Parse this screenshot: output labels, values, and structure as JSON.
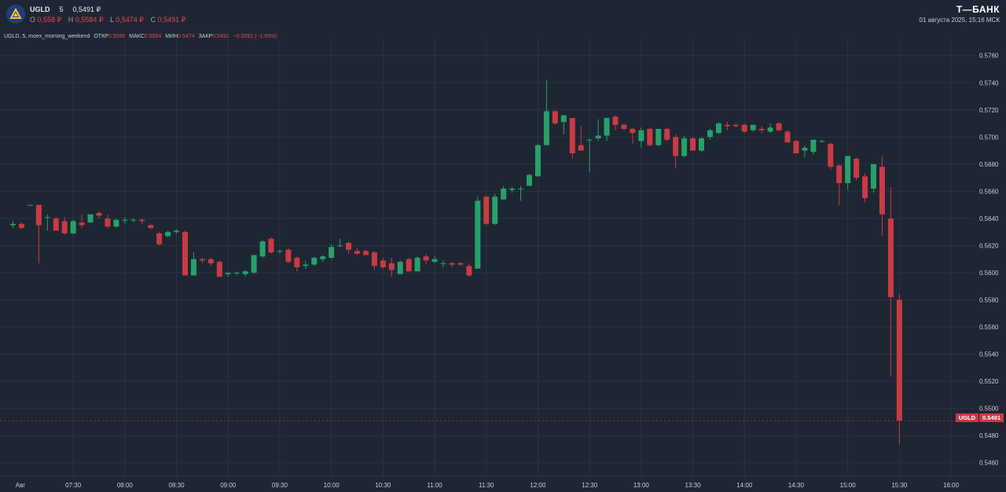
{
  "header": {
    "ticker": "UGLD",
    "interval": "5",
    "price": "0,5491 ₽",
    "ohlc": [
      {
        "k": "O",
        "v": "0,558 ₽"
      },
      {
        "k": "H",
        "v": "0,5584 ₽"
      },
      {
        "k": "L",
        "v": "0,5474 ₽"
      },
      {
        "k": "C",
        "v": "0,5491 ₽"
      }
    ],
    "brand": "Т—БАНК",
    "datetime": "01 августа 2025, 15:16 МСК"
  },
  "info": {
    "title": "UGLD, 5, moex_morning_weekend",
    "open_label": "ОТКР",
    "open": "0.5580",
    "high_label": "МАКС",
    "high": "0.5584",
    "low_label": "МИН",
    "low": "0.5474",
    "close_label": "ЗАКР",
    "close": "0.5491",
    "change": "−0.0092 (−1.65%)"
  },
  "current_price": {
    "name": "UGLD",
    "value": "0.5491"
  },
  "colors": {
    "up": "#26a16a",
    "down": "#c93a44",
    "background": "#1f2633",
    "grid": "#2a3240",
    "axis_text": "#c5ccd6"
  },
  "chart_data": {
    "type": "candlestick",
    "interval_minutes": 5,
    "x_tick_labels": [
      "Авг",
      "07:30",
      "08:00",
      "08:30",
      "09:00",
      "09:30",
      "10:00",
      "10:30",
      "11:00",
      "11:30",
      "12:00",
      "12:30",
      "13:00",
      "13:30",
      "14:00",
      "14:30",
      "15:00",
      "15:30",
      "16:00"
    ],
    "y_ticks": [
      "0.5460",
      "0.5480",
      "0.5500",
      "0.5520",
      "0.5540",
      "0.5560",
      "0.5580",
      "0.5600",
      "0.5620",
      "0.5640",
      "0.5660",
      "0.5680",
      "0.5700",
      "0.5720",
      "0.5740",
      "0.5760"
    ],
    "ylim": [
      0.545,
      0.5772
    ],
    "grid": true,
    "first_candle_time": "06:55",
    "candles": [
      {
        "o": 0.5635,
        "h": 0.5638,
        "l": 0.5633,
        "c": 0.5636
      },
      {
        "o": 0.5636,
        "h": 0.5637,
        "l": 0.5632,
        "c": 0.5633
      },
      {
        "o": 0.565,
        "h": 0.565,
        "l": 0.565,
        "c": 0.565
      },
      {
        "o": 0.565,
        "h": 0.565,
        "l": 0.5607,
        "c": 0.5635
      },
      {
        "o": 0.5641,
        "h": 0.5643,
        "l": 0.5631,
        "c": 0.5641
      },
      {
        "o": 0.564,
        "h": 0.5641,
        "l": 0.5632,
        "c": 0.5631
      },
      {
        "o": 0.5638,
        "h": 0.5641,
        "l": 0.5628,
        "c": 0.5629
      },
      {
        "o": 0.5629,
        "h": 0.5639,
        "l": 0.5628,
        "c": 0.5638
      },
      {
        "o": 0.5637,
        "h": 0.5643,
        "l": 0.5633,
        "c": 0.5635
      },
      {
        "o": 0.5637,
        "h": 0.5642,
        "l": 0.5637,
        "c": 0.5643
      },
      {
        "o": 0.5644,
        "h": 0.5645,
        "l": 0.564,
        "c": 0.5642
      },
      {
        "o": 0.564,
        "h": 0.5643,
        "l": 0.5633,
        "c": 0.5634
      },
      {
        "o": 0.5634,
        "h": 0.564,
        "l": 0.5633,
        "c": 0.5639
      },
      {
        "o": 0.5639,
        "h": 0.5641,
        "l": 0.5636,
        "c": 0.5639
      },
      {
        "o": 0.5639,
        "h": 0.564,
        "l": 0.5637,
        "c": 0.5639
      },
      {
        "o": 0.5639,
        "h": 0.564,
        "l": 0.5636,
        "c": 0.5638
      },
      {
        "o": 0.5635,
        "h": 0.5636,
        "l": 0.5632,
        "c": 0.5633
      },
      {
        "o": 0.5629,
        "h": 0.563,
        "l": 0.562,
        "c": 0.5621
      },
      {
        "o": 0.5627,
        "h": 0.5631,
        "l": 0.5626,
        "c": 0.563
      },
      {
        "o": 0.563,
        "h": 0.5632,
        "l": 0.5629,
        "c": 0.5631
      },
      {
        "o": 0.563,
        "h": 0.5631,
        "l": 0.5598,
        "c": 0.5598
      },
      {
        "o": 0.5598,
        "h": 0.5615,
        "l": 0.5598,
        "c": 0.561
      },
      {
        "o": 0.561,
        "h": 0.5611,
        "l": 0.5607,
        "c": 0.5609
      },
      {
        "o": 0.561,
        "h": 0.5611,
        "l": 0.5605,
        "c": 0.5607
      },
      {
        "o": 0.5608,
        "h": 0.5609,
        "l": 0.5597,
        "c": 0.5597
      },
      {
        "o": 0.5599,
        "h": 0.56,
        "l": 0.5597,
        "c": 0.56
      },
      {
        "o": 0.56,
        "h": 0.5601,
        "l": 0.5598,
        "c": 0.56
      },
      {
        "o": 0.5599,
        "h": 0.5602,
        "l": 0.5597,
        "c": 0.5601
      },
      {
        "o": 0.56,
        "h": 0.5613,
        "l": 0.5599,
        "c": 0.5613
      },
      {
        "o": 0.5612,
        "h": 0.5624,
        "l": 0.5611,
        "c": 0.5623
      },
      {
        "o": 0.5625,
        "h": 0.5626,
        "l": 0.5614,
        "c": 0.5615
      },
      {
        "o": 0.5616,
        "h": 0.5617,
        "l": 0.5614,
        "c": 0.5616
      },
      {
        "o": 0.5617,
        "h": 0.5618,
        "l": 0.5607,
        "c": 0.5608
      },
      {
        "o": 0.5611,
        "h": 0.5612,
        "l": 0.5601,
        "c": 0.5604
      },
      {
        "o": 0.5605,
        "h": 0.5609,
        "l": 0.5603,
        "c": 0.5606
      },
      {
        "o": 0.5606,
        "h": 0.5612,
        "l": 0.5605,
        "c": 0.5611
      },
      {
        "o": 0.561,
        "h": 0.5613,
        "l": 0.5608,
        "c": 0.5612
      },
      {
        "o": 0.5611,
        "h": 0.5621,
        "l": 0.561,
        "c": 0.5619
      },
      {
        "o": 0.562,
        "h": 0.5625,
        "l": 0.5619,
        "c": 0.562
      },
      {
        "o": 0.5622,
        "h": 0.5623,
        "l": 0.5614,
        "c": 0.5617
      },
      {
        "o": 0.5616,
        "h": 0.5618,
        "l": 0.5613,
        "c": 0.5614
      },
      {
        "o": 0.5616,
        "h": 0.5617,
        "l": 0.5613,
        "c": 0.5613
      },
      {
        "o": 0.5615,
        "h": 0.5616,
        "l": 0.5602,
        "c": 0.5605
      },
      {
        "o": 0.5609,
        "h": 0.5611,
        "l": 0.5603,
        "c": 0.5604
      },
      {
        "o": 0.5607,
        "h": 0.5611,
        "l": 0.5597,
        "c": 0.5602
      },
      {
        "o": 0.5599,
        "h": 0.5609,
        "l": 0.5599,
        "c": 0.5608
      },
      {
        "o": 0.561,
        "h": 0.5611,
        "l": 0.5601,
        "c": 0.5601
      },
      {
        "o": 0.5601,
        "h": 0.5612,
        "l": 0.5601,
        "c": 0.5611
      },
      {
        "o": 0.5612,
        "h": 0.5614,
        "l": 0.5606,
        "c": 0.5609
      },
      {
        "o": 0.5608,
        "h": 0.5612,
        "l": 0.5607,
        "c": 0.561
      },
      {
        "o": 0.5607,
        "h": 0.5609,
        "l": 0.5604,
        "c": 0.5607
      },
      {
        "o": 0.5607,
        "h": 0.5608,
        "l": 0.5604,
        "c": 0.5606
      },
      {
        "o": 0.5607,
        "h": 0.5608,
        "l": 0.5605,
        "c": 0.5606
      },
      {
        "o": 0.5605,
        "h": 0.5607,
        "l": 0.5597,
        "c": 0.5598
      },
      {
        "o": 0.5603,
        "h": 0.5656,
        "l": 0.5603,
        "c": 0.5653
      },
      {
        "o": 0.5656,
        "h": 0.5657,
        "l": 0.5635,
        "c": 0.5636
      },
      {
        "o": 0.5636,
        "h": 0.5658,
        "l": 0.5635,
        "c": 0.5656
      },
      {
        "o": 0.5654,
        "h": 0.5664,
        "l": 0.5654,
        "c": 0.5662
      },
      {
        "o": 0.5661,
        "h": 0.5663,
        "l": 0.5659,
        "c": 0.5662
      },
      {
        "o": 0.5662,
        "h": 0.5664,
        "l": 0.5653,
        "c": 0.5662
      },
      {
        "o": 0.5664,
        "h": 0.5673,
        "l": 0.5664,
        "c": 0.5672
      },
      {
        "o": 0.5671,
        "h": 0.5695,
        "l": 0.5671,
        "c": 0.5694
      },
      {
        "o": 0.5694,
        "h": 0.5742,
        "l": 0.5694,
        "c": 0.5719
      },
      {
        "o": 0.5719,
        "h": 0.572,
        "l": 0.5709,
        "c": 0.571
      },
      {
        "o": 0.5711,
        "h": 0.5716,
        "l": 0.5702,
        "c": 0.5716
      },
      {
        "o": 0.5714,
        "h": 0.5714,
        "l": 0.5684,
        "c": 0.5688
      },
      {
        "o": 0.5694,
        "h": 0.5708,
        "l": 0.569,
        "c": 0.569
      },
      {
        "o": 0.5698,
        "h": 0.5699,
        "l": 0.5674,
        "c": 0.5698
      },
      {
        "o": 0.5699,
        "h": 0.5713,
        "l": 0.5697,
        "c": 0.5701
      },
      {
        "o": 0.5701,
        "h": 0.5714,
        "l": 0.5697,
        "c": 0.5714
      },
      {
        "o": 0.5715,
        "h": 0.5716,
        "l": 0.5705,
        "c": 0.5709
      },
      {
        "o": 0.5709,
        "h": 0.571,
        "l": 0.5705,
        "c": 0.5706
      },
      {
        "o": 0.5706,
        "h": 0.5707,
        "l": 0.5695,
        "c": 0.5703
      },
      {
        "o": 0.5697,
        "h": 0.5707,
        "l": 0.5692,
        "c": 0.5705
      },
      {
        "o": 0.5706,
        "h": 0.5707,
        "l": 0.5693,
        "c": 0.5694
      },
      {
        "o": 0.5694,
        "h": 0.5706,
        "l": 0.5693,
        "c": 0.5706
      },
      {
        "o": 0.5706,
        "h": 0.5707,
        "l": 0.5697,
        "c": 0.5698
      },
      {
        "o": 0.57,
        "h": 0.5702,
        "l": 0.5677,
        "c": 0.5686
      },
      {
        "o": 0.5686,
        "h": 0.5701,
        "l": 0.5685,
        "c": 0.5699
      },
      {
        "o": 0.5699,
        "h": 0.57,
        "l": 0.5691,
        "c": 0.569
      },
      {
        "o": 0.569,
        "h": 0.57,
        "l": 0.5689,
        "c": 0.5699
      },
      {
        "o": 0.57,
        "h": 0.5706,
        "l": 0.5698,
        "c": 0.5705
      },
      {
        "o": 0.5703,
        "h": 0.5711,
        "l": 0.5702,
        "c": 0.571
      },
      {
        "o": 0.5709,
        "h": 0.5711,
        "l": 0.5705,
        "c": 0.5708
      },
      {
        "o": 0.5709,
        "h": 0.571,
        "l": 0.5707,
        "c": 0.5708
      },
      {
        "o": 0.5709,
        "h": 0.571,
        "l": 0.5703,
        "c": 0.5704
      },
      {
        "o": 0.5705,
        "h": 0.5709,
        "l": 0.5704,
        "c": 0.5709
      },
      {
        "o": 0.5706,
        "h": 0.5708,
        "l": 0.5703,
        "c": 0.5705
      },
      {
        "o": 0.5704,
        "h": 0.571,
        "l": 0.5703,
        "c": 0.5707
      },
      {
        "o": 0.571,
        "h": 0.5711,
        "l": 0.5704,
        "c": 0.5705
      },
      {
        "o": 0.5704,
        "h": 0.5705,
        "l": 0.5696,
        "c": 0.5696
      },
      {
        "o": 0.5697,
        "h": 0.5698,
        "l": 0.5688,
        "c": 0.5688
      },
      {
        "o": 0.569,
        "h": 0.5694,
        "l": 0.5685,
        "c": 0.5692
      },
      {
        "o": 0.5689,
        "h": 0.5698,
        "l": 0.5687,
        "c": 0.5698
      },
      {
        "o": 0.5697,
        "h": 0.5698,
        "l": 0.5696,
        "c": 0.5697
      },
      {
        "o": 0.5695,
        "h": 0.5696,
        "l": 0.5676,
        "c": 0.5678
      },
      {
        "o": 0.5679,
        "h": 0.568,
        "l": 0.565,
        "c": 0.5666
      },
      {
        "o": 0.5666,
        "h": 0.5686,
        "l": 0.5661,
        "c": 0.5686
      },
      {
        "o": 0.5684,
        "h": 0.5685,
        "l": 0.5668,
        "c": 0.567
      },
      {
        "o": 0.5671,
        "h": 0.5673,
        "l": 0.5652,
        "c": 0.5655
      },
      {
        "o": 0.5662,
        "h": 0.568,
        "l": 0.5659,
        "c": 0.568
      },
      {
        "o": 0.5678,
        "h": 0.5686,
        "l": 0.5627,
        "c": 0.5643
      },
      {
        "o": 0.564,
        "h": 0.5663,
        "l": 0.5524,
        "c": 0.5582
      },
      {
        "o": 0.558,
        "h": 0.5584,
        "l": 0.5474,
        "c": 0.5491
      }
    ]
  }
}
